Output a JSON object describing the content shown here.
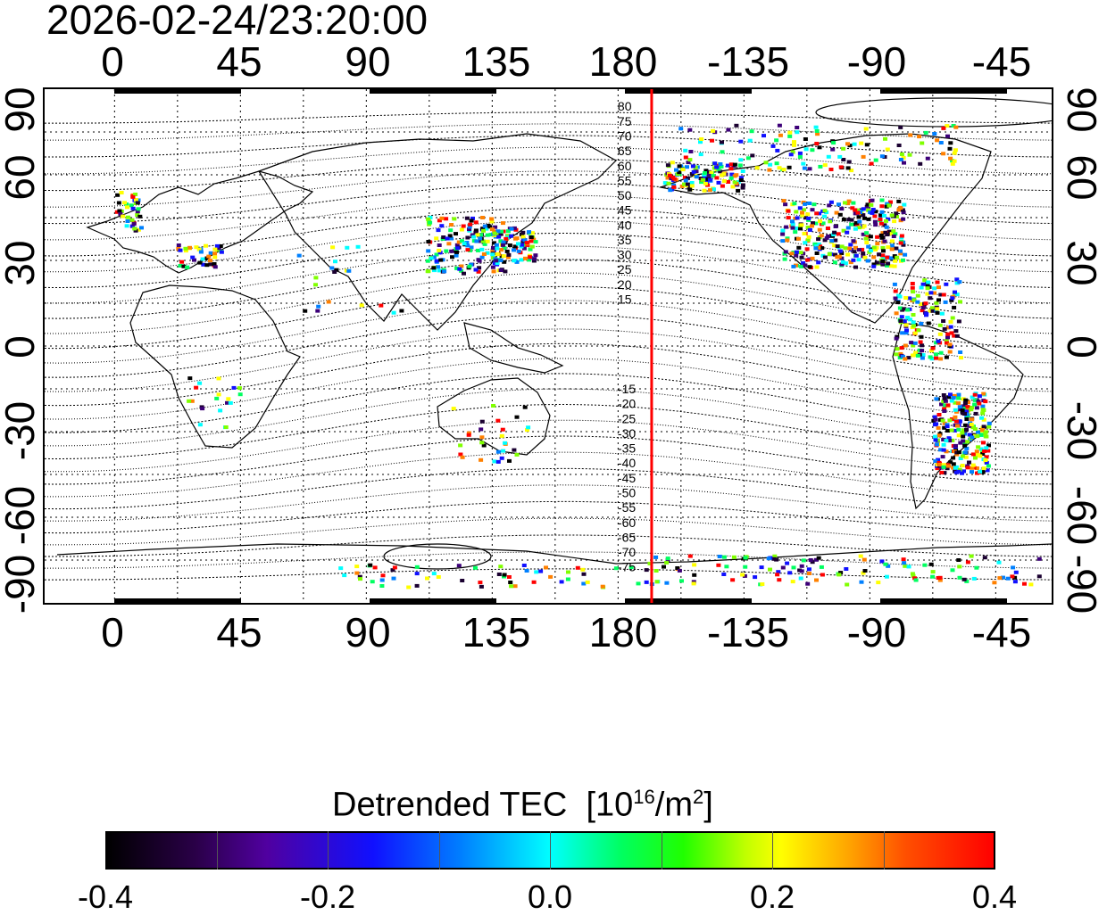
{
  "timestamp": "2026-02-24/23:20:00",
  "axes": {
    "x_tick_labels": [
      "0",
      "45",
      "90",
      "135",
      "180",
      "-135",
      "-90",
      "-45"
    ],
    "left_y_tick_labels": [
      "90",
      "60",
      "30",
      "0",
      "-30",
      "-60",
      "-90"
    ],
    "right_y_tick_labels": [
      "90",
      "60",
      "30",
      "0",
      "-30",
      "-60",
      "-90"
    ],
    "lon_range": [
      -25,
      335
    ],
    "lat_range": [
      -90,
      90
    ]
  },
  "contour_labels_north": [
    "80",
    "75",
    "70",
    "65",
    "60",
    "55",
    "50",
    "45",
    "40",
    "35",
    "30",
    "25",
    "20",
    "15"
  ],
  "contour_labels_south": [
    "-15",
    "-20",
    "-25",
    "-30",
    "-35",
    "-40",
    "-45",
    "-50",
    "-55",
    "-60",
    "-65",
    "-70",
    "-75"
  ],
  "terminator_longitude": 192,
  "colorbar": {
    "title": "Detrended TEC",
    "unit_prefix": "[10",
    "unit_exp1": "16",
    "unit_mid": "/m",
    "unit_exp2": "2",
    "unit_suffix": "]",
    "tick_labels": [
      "-0.4",
      "-0.2",
      "0.0",
      "0.2",
      "0.4"
    ],
    "range": [
      -0.4,
      0.4
    ]
  },
  "colors": {
    "terminator": "#ff0000",
    "coastline": "#000000",
    "grid": "#000000"
  }
}
